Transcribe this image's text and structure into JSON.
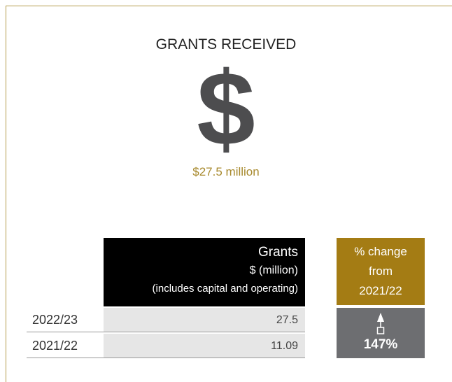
{
  "header": {
    "title": "GRANTS RECEIVED",
    "symbol": "$",
    "amount": "$27.5 million"
  },
  "table": {
    "header": [
      "Grants",
      "$ (million)",
      "(includes capital and operating)"
    ],
    "rows": [
      [
        "2022/23",
        "27.5"
      ],
      [
        "2021/22",
        "11.09"
      ]
    ]
  },
  "change": {
    "header": [
      "% change",
      "from",
      "2021/22"
    ],
    "value": "147%"
  }
}
